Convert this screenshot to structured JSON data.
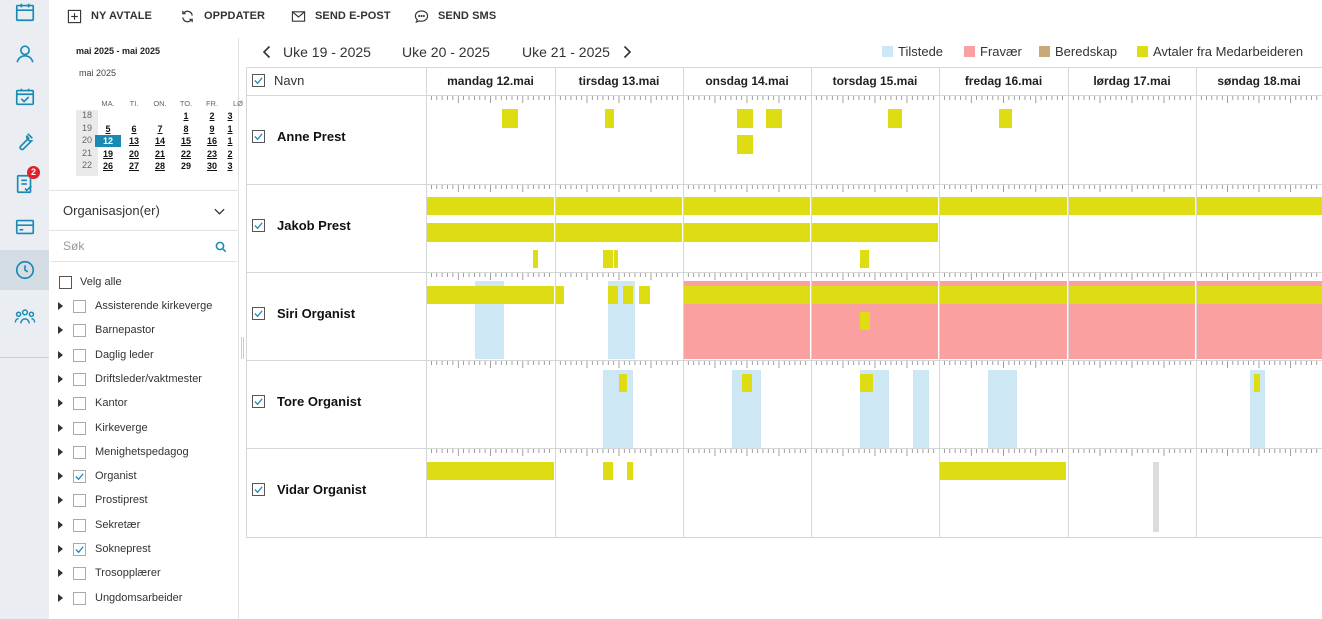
{
  "toolbar": {
    "new_appointment": "NY AVTALE",
    "refresh": "OPPDATER",
    "send_email": "SEND E-POST",
    "send_sms": "SEND SMS"
  },
  "rail": {
    "icons": [
      "calendar-icon",
      "user-icon",
      "calendar-check-icon",
      "wrench-icon",
      "task-list-icon",
      "card-icon",
      "clock-icon",
      "team-icon"
    ],
    "task_badge": "2",
    "active": "clock-icon"
  },
  "mini_calendar": {
    "range_title": "mai 2025 - mai 2025",
    "month_label": "mai 2025",
    "day_headers": [
      "MA.",
      "TI.",
      "ON.",
      "TO.",
      "FR.",
      "LØ"
    ],
    "weeks": [
      {
        "week": "18",
        "days": [
          "",
          "",
          "",
          "1",
          "2",
          "3"
        ]
      },
      {
        "week": "19",
        "days": [
          "5",
          "6",
          "7",
          "8",
          "9",
          "1"
        ]
      },
      {
        "week": "20",
        "days": [
          "12",
          "13",
          "14",
          "15",
          "16",
          "1"
        ]
      },
      {
        "week": "21",
        "days": [
          "19",
          "20",
          "21",
          "22",
          "23",
          "2"
        ]
      },
      {
        "week": "22",
        "days": [
          "26",
          "27",
          "28",
          "29",
          "30",
          "3"
        ]
      }
    ],
    "today": "12"
  },
  "filters": {
    "org_select_label": "Organisasjon(er)",
    "search_placeholder": "Søk",
    "select_all_label": "Velg alle",
    "organisations": [
      {
        "label": "Assisterende kirkeverge",
        "checked": false
      },
      {
        "label": "Barnepastor",
        "checked": false
      },
      {
        "label": "Daglig leder",
        "checked": false
      },
      {
        "label": "Driftsleder/vaktmester",
        "checked": false
      },
      {
        "label": "Kantor",
        "checked": false
      },
      {
        "label": "Kirkeverge",
        "checked": false
      },
      {
        "label": "Menighetspedagog",
        "checked": false
      },
      {
        "label": "Organist",
        "checked": true
      },
      {
        "label": "Prostiprest",
        "checked": false
      },
      {
        "label": "Sekretær",
        "checked": false
      },
      {
        "label": "Sokneprest",
        "checked": true
      },
      {
        "label": "Trosopplærer",
        "checked": false
      },
      {
        "label": "Ungdomsarbeider",
        "checked": false
      }
    ]
  },
  "week_nav": {
    "weeks": [
      "Uke 19 - 2025",
      "Uke 20 - 2025",
      "Uke 21 - 2025"
    ]
  },
  "legend": [
    {
      "label": "Tilstede",
      "color": "#cde8f4"
    },
    {
      "label": "Fravær",
      "color": "#fba0a0"
    },
    {
      "label": "Beredskap",
      "color": "#c8a97a"
    },
    {
      "label": "Avtaler fra Medarbeideren",
      "color": "#dedd14"
    }
  ],
  "grid": {
    "name_header": "Navn",
    "days": [
      "mandag 12.mai",
      "tirsdag 13.mai",
      "onsdag 14.mai",
      "torsdag 15.mai",
      "fredag 16.mai",
      "lørdag 17.mai",
      "søndag 18.mai"
    ],
    "people": [
      "Anne Prest",
      "Jakob Prest",
      "Siri Organist",
      "Tore Organist",
      "Vidar Organist"
    ]
  }
}
